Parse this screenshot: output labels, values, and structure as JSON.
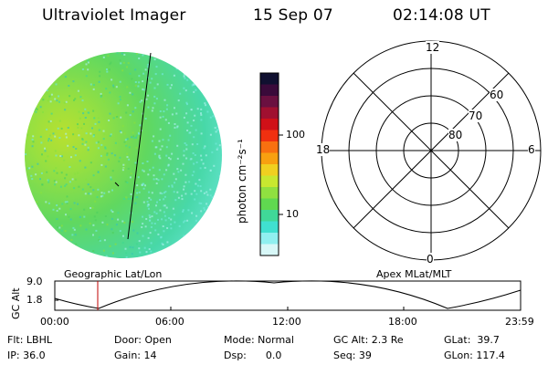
{
  "header": {
    "instrument": "Ultraviolet Imager",
    "date": "15 Sep 07",
    "time": "02:14:08 UT"
  },
  "colorbar": {
    "unit_label": "photon cm⁻²s⁻¹",
    "ticks": [
      "100",
      "10"
    ],
    "colors": [
      "#101030",
      "#3a0a3a",
      "#6a1040",
      "#a01030",
      "#d01018",
      "#f03010",
      "#f87010",
      "#f8a010",
      "#f0d020",
      "#c8e830",
      "#90e040",
      "#60d850",
      "#40d898",
      "#40e0d0",
      "#90f0f0",
      "#d8f8f8"
    ]
  },
  "polar": {
    "mlt_labels": {
      "top": "12",
      "left": "18",
      "right": "6",
      "bottom": "0"
    },
    "lat_labels": [
      "60",
      "70",
      "80"
    ]
  },
  "footer_labels": {
    "geographic": "Geographic Lat/Lon",
    "apex": "Apex MLat/MLT"
  },
  "altitude_plot": {
    "ylabel": "GC Alt",
    "yticks": [
      "9.0",
      "1.8"
    ],
    "xticks": [
      "00:00",
      "06:00",
      "12:00",
      "18:00",
      "23:59"
    ]
  },
  "status": {
    "filter": "Flt: LBHL",
    "ip": "IP: 36.0",
    "door": "Door: Open",
    "gain": "Gain: 14",
    "mode": "Mode: Normal",
    "dsp": "Dsp:      0.0",
    "gc_alt": "GC Alt: 2.3 Re",
    "seq": "Seq: 39",
    "glat": "GLat:  39.7",
    "glon": "GLon: 117.4"
  }
}
